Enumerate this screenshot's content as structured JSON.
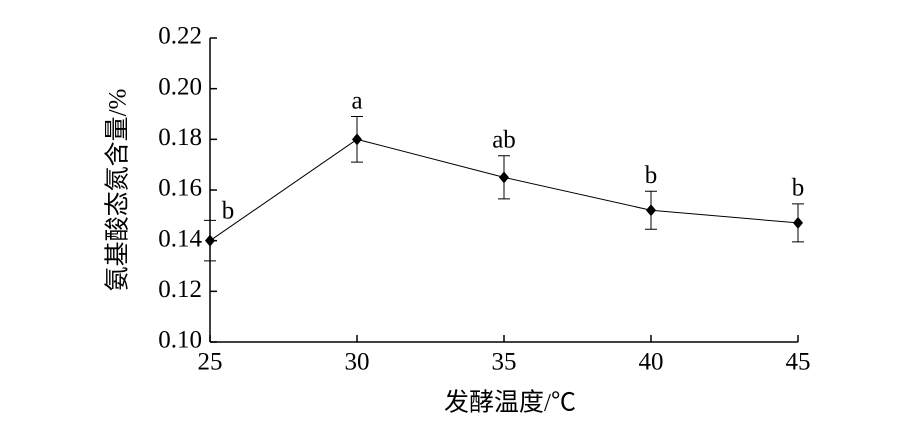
{
  "chart_data": {
    "type": "line",
    "x_label": "发酵温度/℃",
    "y_label": "氨基酸态氮含量/%",
    "x": [
      25,
      30,
      35,
      40,
      45
    ],
    "series": [
      {
        "color": "#000000",
        "values": [
          0.14,
          0.18,
          0.165,
          0.152,
          0.147
        ],
        "errors": [
          0.008,
          0.009,
          0.0085,
          0.0075,
          0.0075
        ]
      }
    ],
    "annotations": [
      "b",
      "a",
      "ab",
      "b",
      "b"
    ],
    "xlim": [
      25,
      45
    ],
    "xticks": [
      25,
      30,
      35,
      40,
      45
    ],
    "ylim": [
      0.1,
      0.22
    ],
    "yticks": [
      {
        "value": 0.1,
        "label": "0.10"
      },
      0.12,
      0.14,
      0.16,
      0.18,
      {
        "value": 0.2,
        "label": "0.20"
      },
      0.22
    ]
  }
}
